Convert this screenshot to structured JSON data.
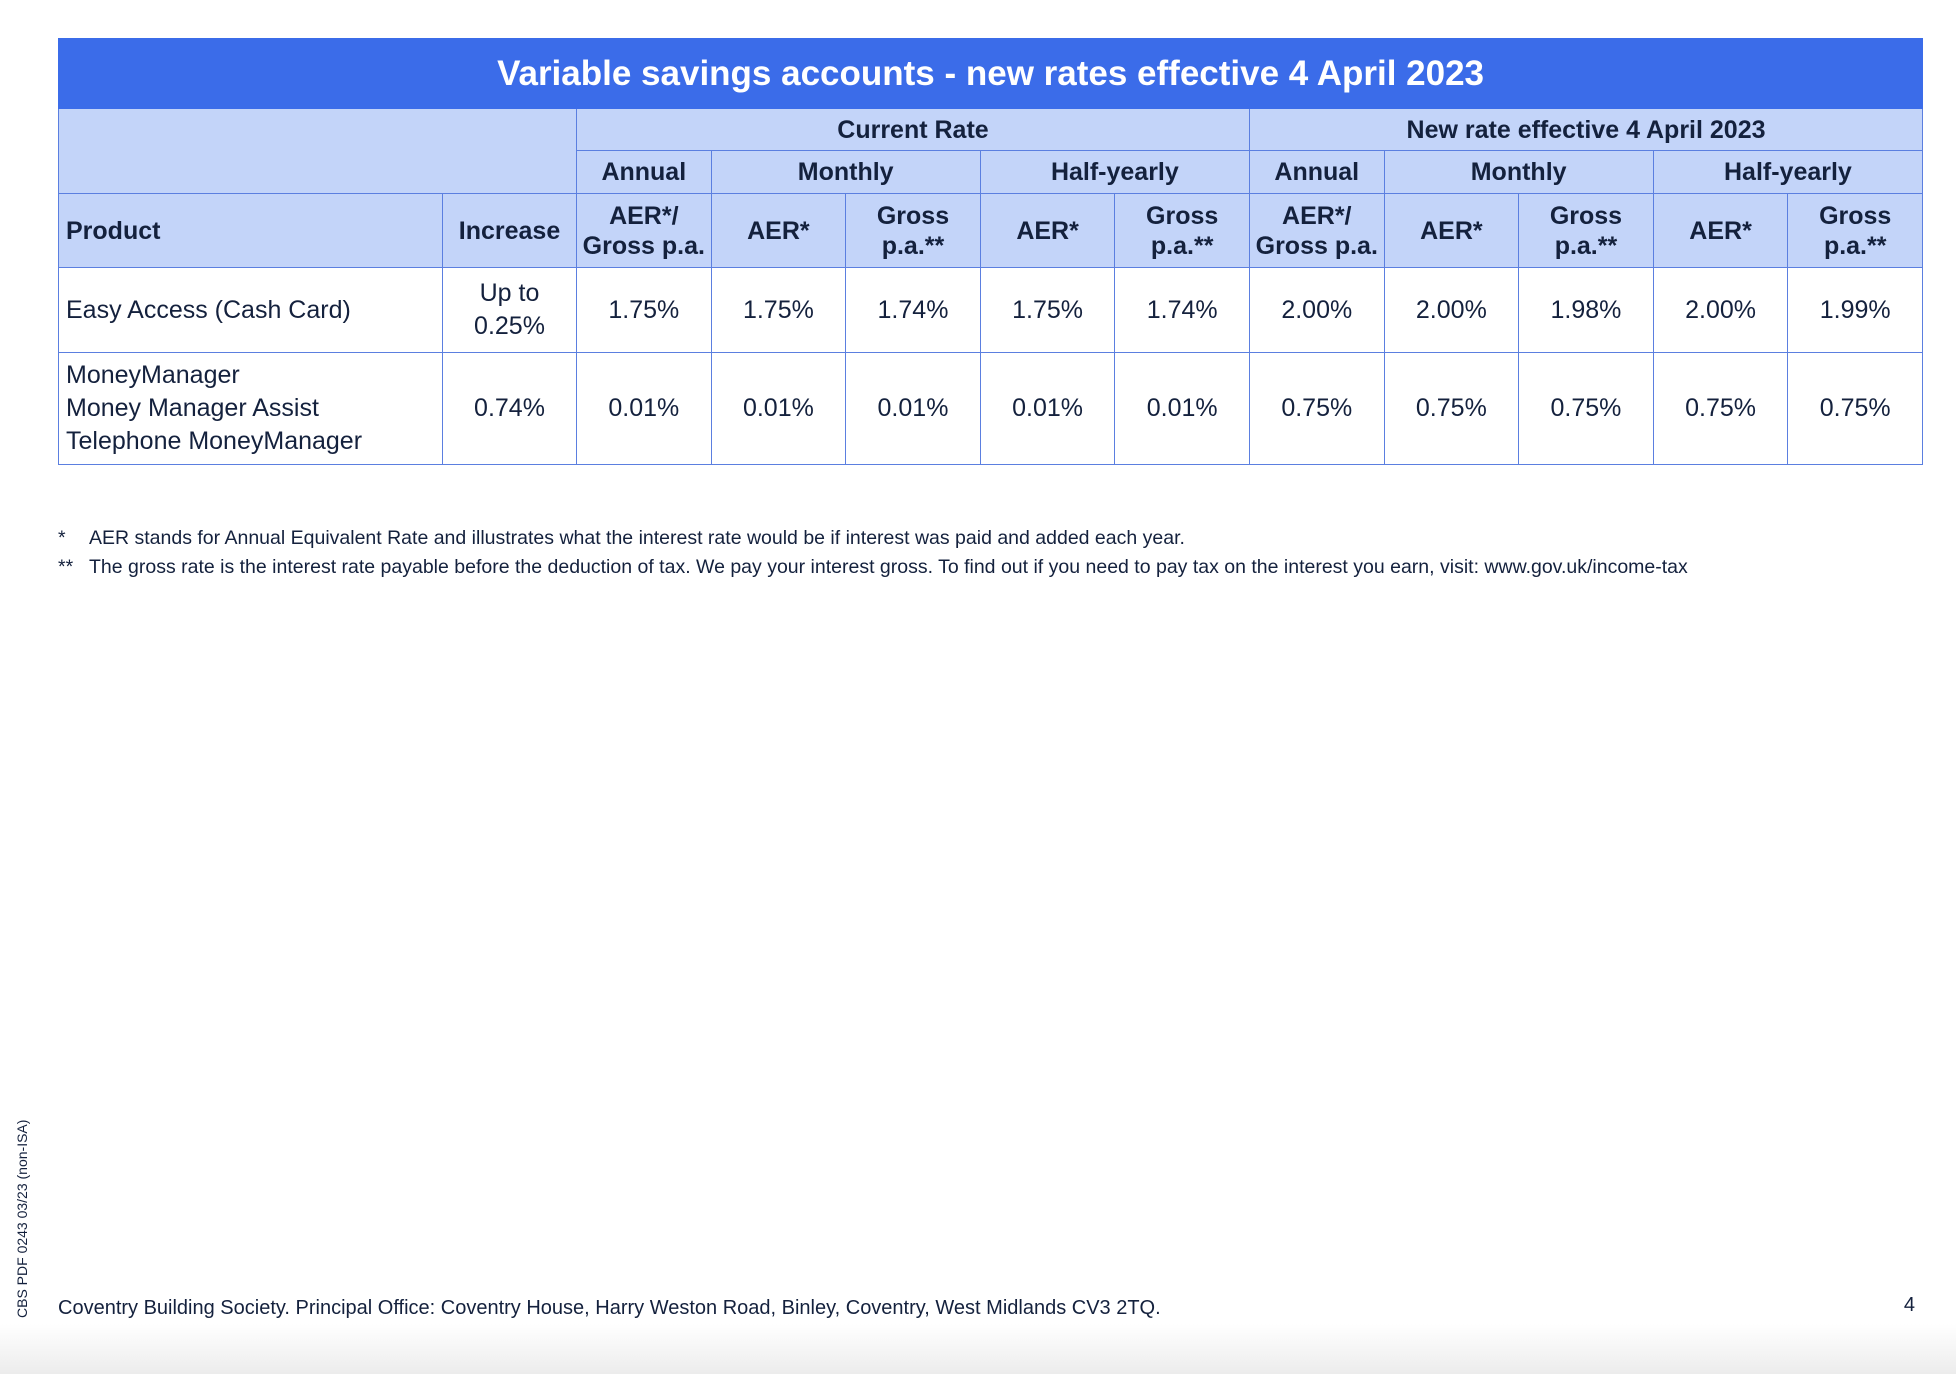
{
  "table": {
    "title": "Variable savings accounts - new rates effective 4 April 2023",
    "groups": {
      "current": "Current Rate",
      "new": "New rate effective 4 April 2023"
    },
    "subgroups": {
      "annual": "Annual",
      "monthly": "Monthly",
      "half_yearly": "Half-yearly"
    },
    "columns": {
      "product": "Product",
      "increase": "Increase",
      "aer_gross_1": "AER*/",
      "aer_gross_2": "Gross p.a.",
      "aer": "AER*",
      "gross_1": "Gross",
      "gross_2": "p.a.**"
    },
    "rows": [
      {
        "product_lines": [
          "Easy Access (Cash Card)"
        ],
        "increase_lines": [
          "Up to",
          "0.25%"
        ],
        "values": [
          "1.75%",
          "1.75%",
          "1.74%",
          "1.75%",
          "1.74%",
          "2.00%",
          "2.00%",
          "1.98%",
          "2.00%",
          "1.99%"
        ]
      },
      {
        "product_lines": [
          "MoneyManager",
          "Money Manager Assist",
          "Telephone MoneyManager"
        ],
        "increase_lines": [
          "0.74%"
        ],
        "values": [
          "0.01%",
          "0.01%",
          "0.01%",
          "0.01%",
          "0.01%",
          "0.75%",
          "0.75%",
          "0.75%",
          "0.75%",
          "0.75%"
        ]
      }
    ]
  },
  "notes": [
    {
      "mark": "*",
      "text": "AER stands for Annual Equivalent Rate and illustrates what the interest rate would be if interest was paid and added each year."
    },
    {
      "mark": "**",
      "text": "The gross rate is the interest rate payable before the deduction of tax. We pay your interest gross. To find out if you need to pay tax on the interest you earn, visit: www.gov.uk/income-tax"
    }
  ],
  "footer": {
    "address": "Coventry Building Society. Principal Office: Coventry House, Harry Weston Road, Binley, Coventry, West Midlands CV3 2TQ.",
    "page_number": "4",
    "side_ref": "CBS PDF 0243 03/23 (non-ISA)"
  },
  "colors": {
    "title_bg": "#3b6ce9",
    "header_bg": "#c3d4f9",
    "border": "#5b7fe0",
    "text": "#14213d"
  }
}
